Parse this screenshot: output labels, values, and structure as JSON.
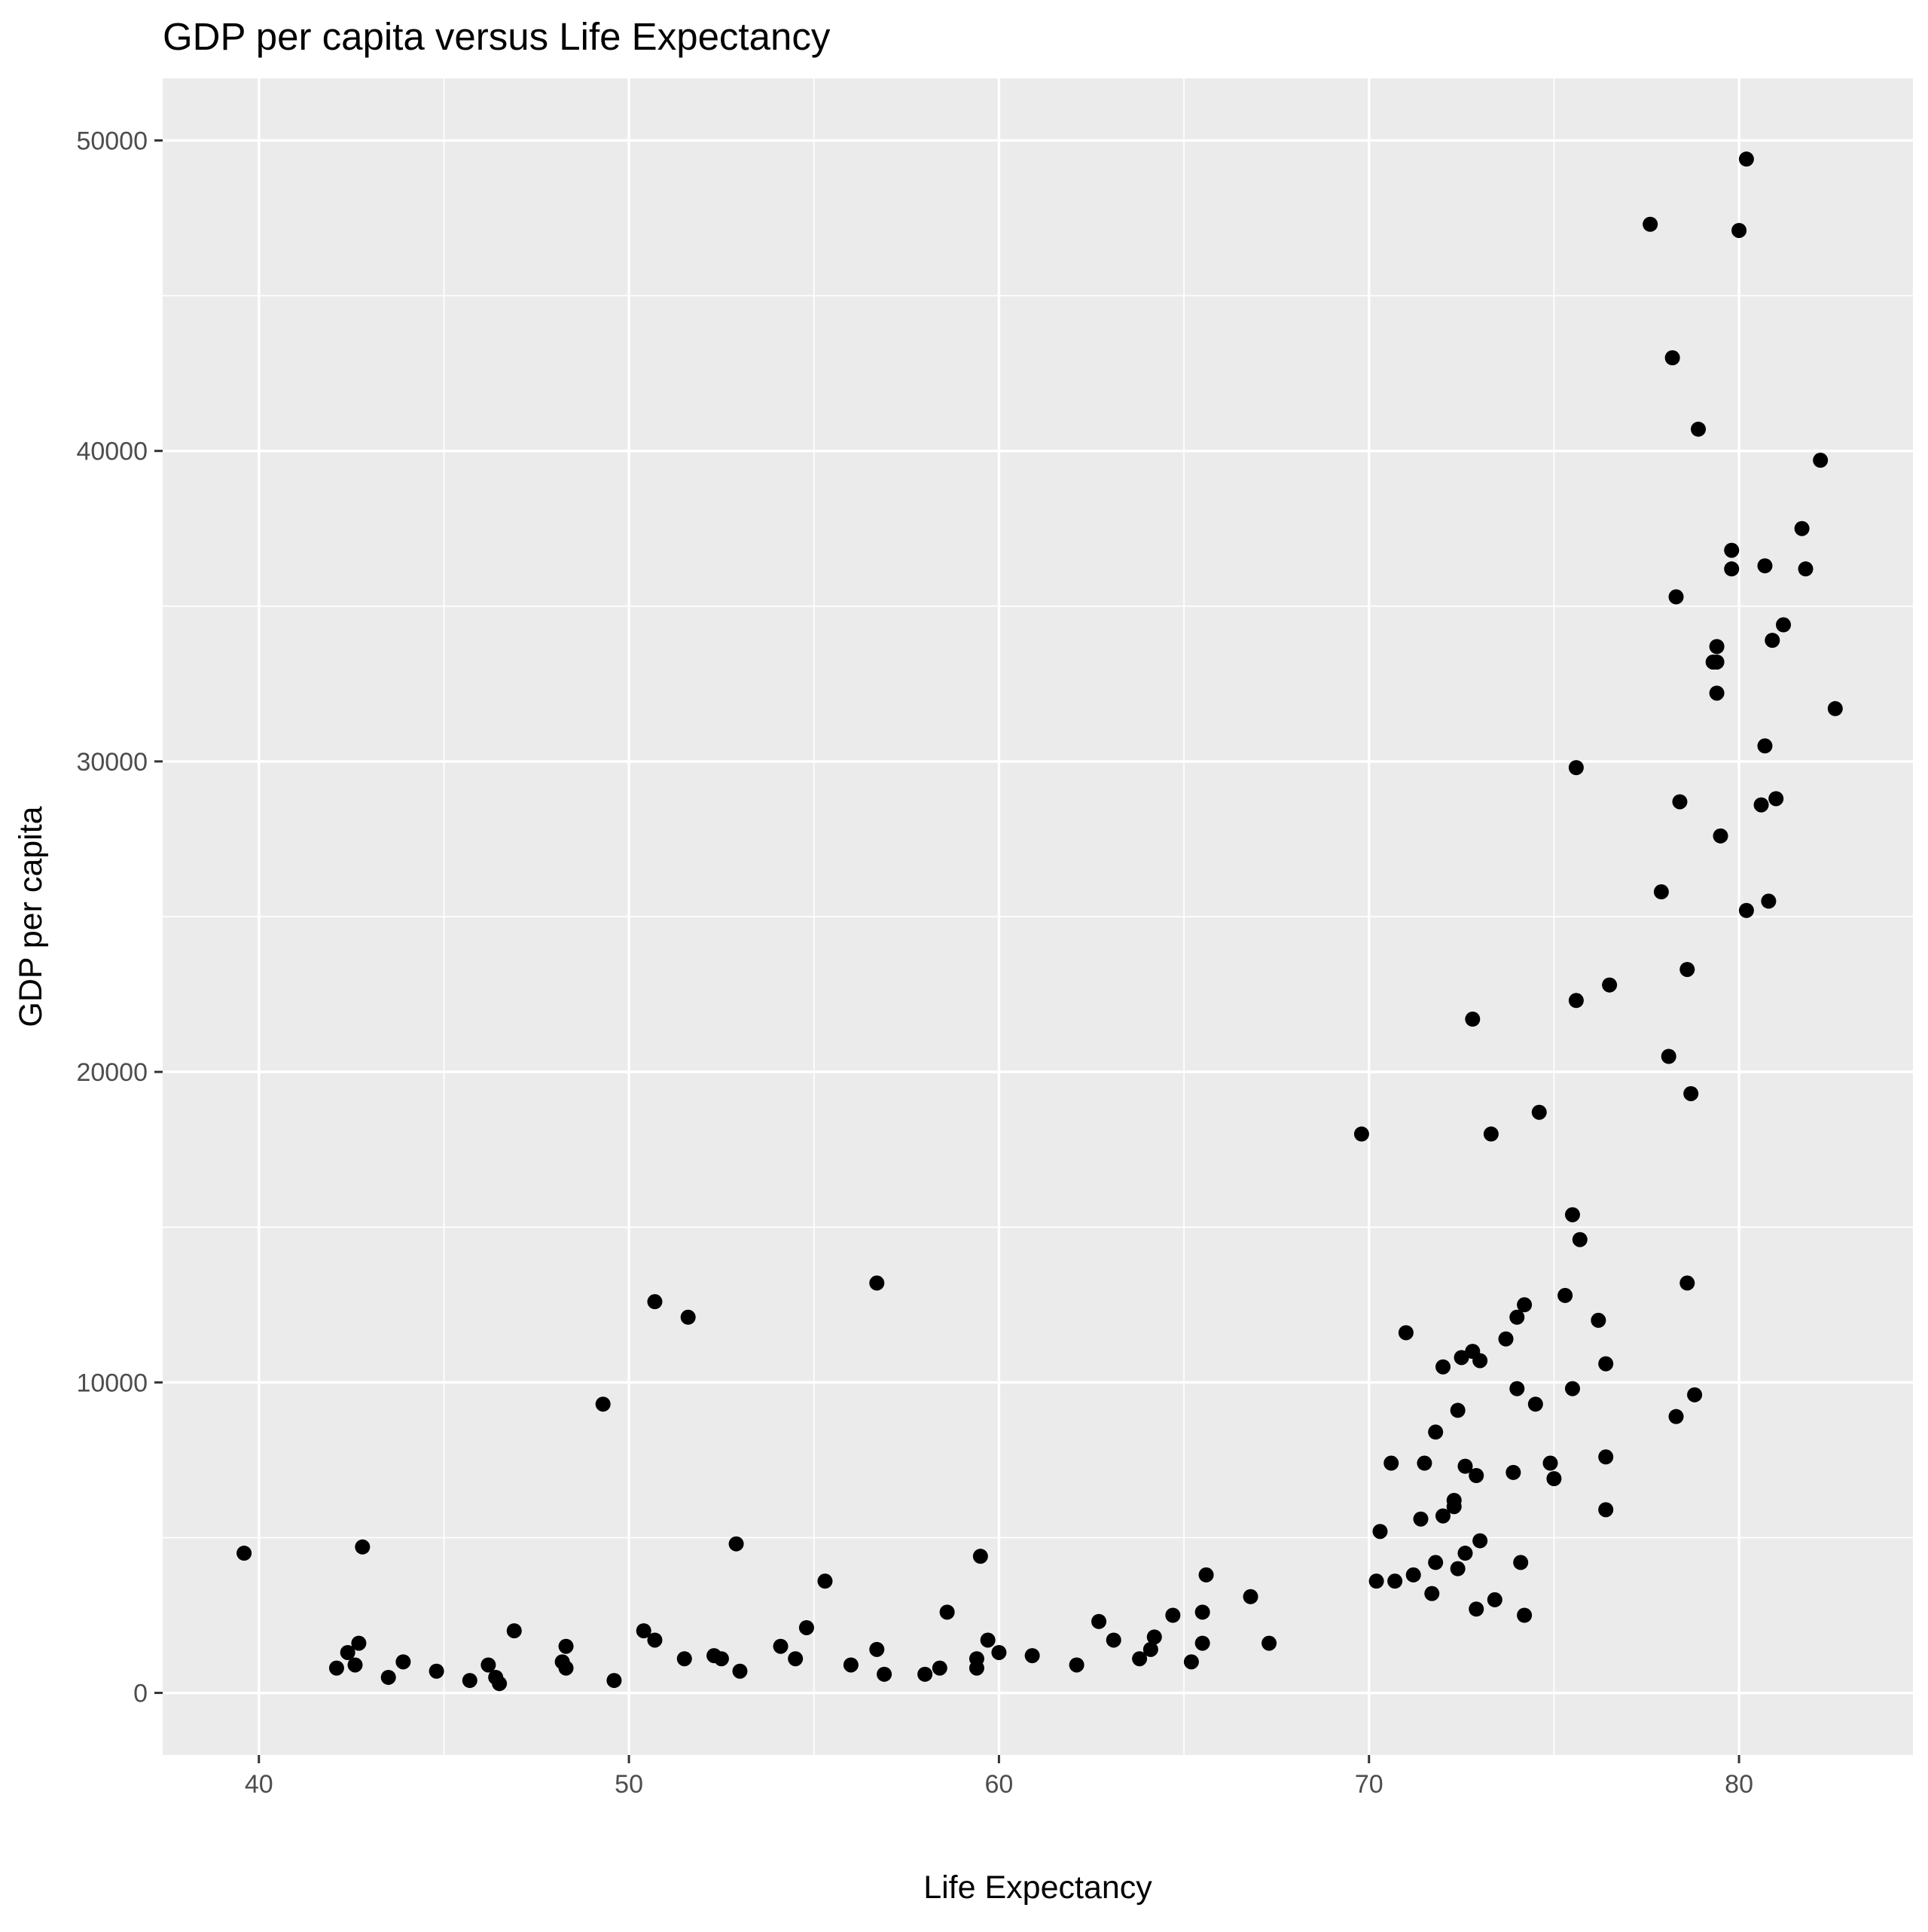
{
  "chart_data": {
    "type": "scatter",
    "title": "GDP per capita versus Life Expectancy",
    "xlabel": "Life Expectancy",
    "ylabel": "GDP per capita",
    "xlim": [
      37.4,
      84.7
    ],
    "ylim": [
      -2000,
      52000
    ],
    "xticks": [
      40,
      50,
      60,
      70,
      80
    ],
    "yticks": [
      0,
      10000,
      20000,
      30000,
      40000,
      50000
    ],
    "xtick_labels": [
      "40",
      "50",
      "60",
      "70",
      "80"
    ],
    "ytick_labels": [
      "0",
      "10000",
      "20000",
      "30000",
      "40000",
      "50000"
    ],
    "grid": true,
    "legend": "none",
    "panel_color": "#ebebeb",
    "point_color": "#000000",
    "series": [
      {
        "points": [
          [
            39.6,
            4500
          ],
          [
            42.1,
            800
          ],
          [
            42.4,
            1300
          ],
          [
            42.6,
            900
          ],
          [
            42.7,
            1600
          ],
          [
            42.8,
            4700
          ],
          [
            43.5,
            500
          ],
          [
            43.9,
            1000
          ],
          [
            44.8,
            700
          ],
          [
            45.7,
            400
          ],
          [
            46.2,
            900
          ],
          [
            46.4,
            500
          ],
          [
            46.5,
            300
          ],
          [
            46.9,
            2000
          ],
          [
            48.2,
            1000
          ],
          [
            48.3,
            800
          ],
          [
            48.3,
            1500
          ],
          [
            49.3,
            9300
          ],
          [
            49.6,
            400
          ],
          [
            50.4,
            2000
          ],
          [
            50.7,
            1700
          ],
          [
            50.7,
            12600
          ],
          [
            51.5,
            1100
          ],
          [
            51.6,
            12100
          ],
          [
            52.3,
            1200
          ],
          [
            52.5,
            1100
          ],
          [
            52.9,
            4800
          ],
          [
            53.0,
            700
          ],
          [
            54.1,
            1500
          ],
          [
            54.5,
            1100
          ],
          [
            54.8,
            2100
          ],
          [
            55.3,
            3600
          ],
          [
            56.0,
            900
          ],
          [
            56.7,
            1400
          ],
          [
            56.7,
            13200
          ],
          [
            56.9,
            600
          ],
          [
            58.0,
            600
          ],
          [
            58.4,
            800
          ],
          [
            58.6,
            2600
          ],
          [
            59.4,
            1100
          ],
          [
            59.4,
            800
          ],
          [
            59.5,
            4400
          ],
          [
            59.7,
            1700
          ],
          [
            60.0,
            1300
          ],
          [
            60.9,
            1200
          ],
          [
            62.1,
            900
          ],
          [
            62.7,
            2300
          ],
          [
            63.1,
            1700
          ],
          [
            63.8,
            1100
          ],
          [
            64.1,
            1400
          ],
          [
            64.2,
            1800
          ],
          [
            64.7,
            2500
          ],
          [
            65.2,
            1000
          ],
          [
            65.5,
            2600
          ],
          [
            65.5,
            1600
          ],
          [
            65.6,
            3800
          ],
          [
            66.8,
            3100
          ],
          [
            67.3,
            1600
          ],
          [
            69.8,
            18000
          ],
          [
            70.2,
            3600
          ],
          [
            70.3,
            5200
          ],
          [
            70.6,
            7400
          ],
          [
            70.7,
            3600
          ],
          [
            71.0,
            11600
          ],
          [
            71.2,
            3800
          ],
          [
            71.4,
            5600
          ],
          [
            71.5,
            7400
          ],
          [
            71.7,
            3200
          ],
          [
            71.8,
            8400
          ],
          [
            71.8,
            4200
          ],
          [
            72.0,
            5700
          ],
          [
            72.0,
            10500
          ],
          [
            72.3,
            6000
          ],
          [
            72.3,
            6200
          ],
          [
            72.4,
            9100
          ],
          [
            72.4,
            4000
          ],
          [
            72.5,
            10800
          ],
          [
            72.6,
            7300
          ],
          [
            72.6,
            4500
          ],
          [
            72.8,
            11000
          ],
          [
            72.8,
            21700
          ],
          [
            72.9,
            2700
          ],
          [
            72.9,
            7000
          ],
          [
            73.0,
            10700
          ],
          [
            73.0,
            4900
          ],
          [
            73.3,
            18000
          ],
          [
            73.4,
            3000
          ],
          [
            73.7,
            11400
          ],
          [
            73.9,
            7100
          ],
          [
            74.0,
            12100
          ],
          [
            74.0,
            9800
          ],
          [
            74.1,
            4200
          ],
          [
            74.2,
            2500
          ],
          [
            74.2,
            12500
          ],
          [
            74.5,
            9300
          ],
          [
            74.6,
            18700
          ],
          [
            74.9,
            7400
          ],
          [
            75.0,
            6900
          ],
          [
            75.3,
            12800
          ],
          [
            75.5,
            15400
          ],
          [
            75.5,
            9800
          ],
          [
            75.6,
            22300
          ],
          [
            75.6,
            29800
          ],
          [
            75.7,
            14600
          ],
          [
            76.2,
            12000
          ],
          [
            76.4,
            10600
          ],
          [
            76.4,
            5900
          ],
          [
            76.4,
            7600
          ],
          [
            76.5,
            22800
          ],
          [
            77.6,
            47300
          ],
          [
            77.9,
            25800
          ],
          [
            78.1,
            20500
          ],
          [
            78.2,
            43000
          ],
          [
            78.3,
            8900
          ],
          [
            78.3,
            35300
          ],
          [
            78.4,
            28700
          ],
          [
            78.6,
            13200
          ],
          [
            78.6,
            23300
          ],
          [
            78.7,
            19300
          ],
          [
            78.8,
            9600
          ],
          [
            78.9,
            40700
          ],
          [
            79.3,
            33200
          ],
          [
            79.4,
            33200
          ],
          [
            79.4,
            32200
          ],
          [
            79.4,
            33700
          ],
          [
            79.5,
            27600
          ],
          [
            79.8,
            36800
          ],
          [
            79.8,
            36200
          ],
          [
            80.0,
            47100
          ],
          [
            80.2,
            49400
          ],
          [
            80.2,
            25200
          ],
          [
            80.6,
            28600
          ],
          [
            80.7,
            30500
          ],
          [
            80.7,
            36300
          ],
          [
            80.8,
            25500
          ],
          [
            80.9,
            33900
          ],
          [
            81.0,
            28800
          ],
          [
            81.2,
            34400
          ],
          [
            81.7,
            37500
          ],
          [
            81.8,
            36200
          ],
          [
            82.2,
            39700
          ],
          [
            82.6,
            31700
          ]
        ]
      }
    ]
  }
}
